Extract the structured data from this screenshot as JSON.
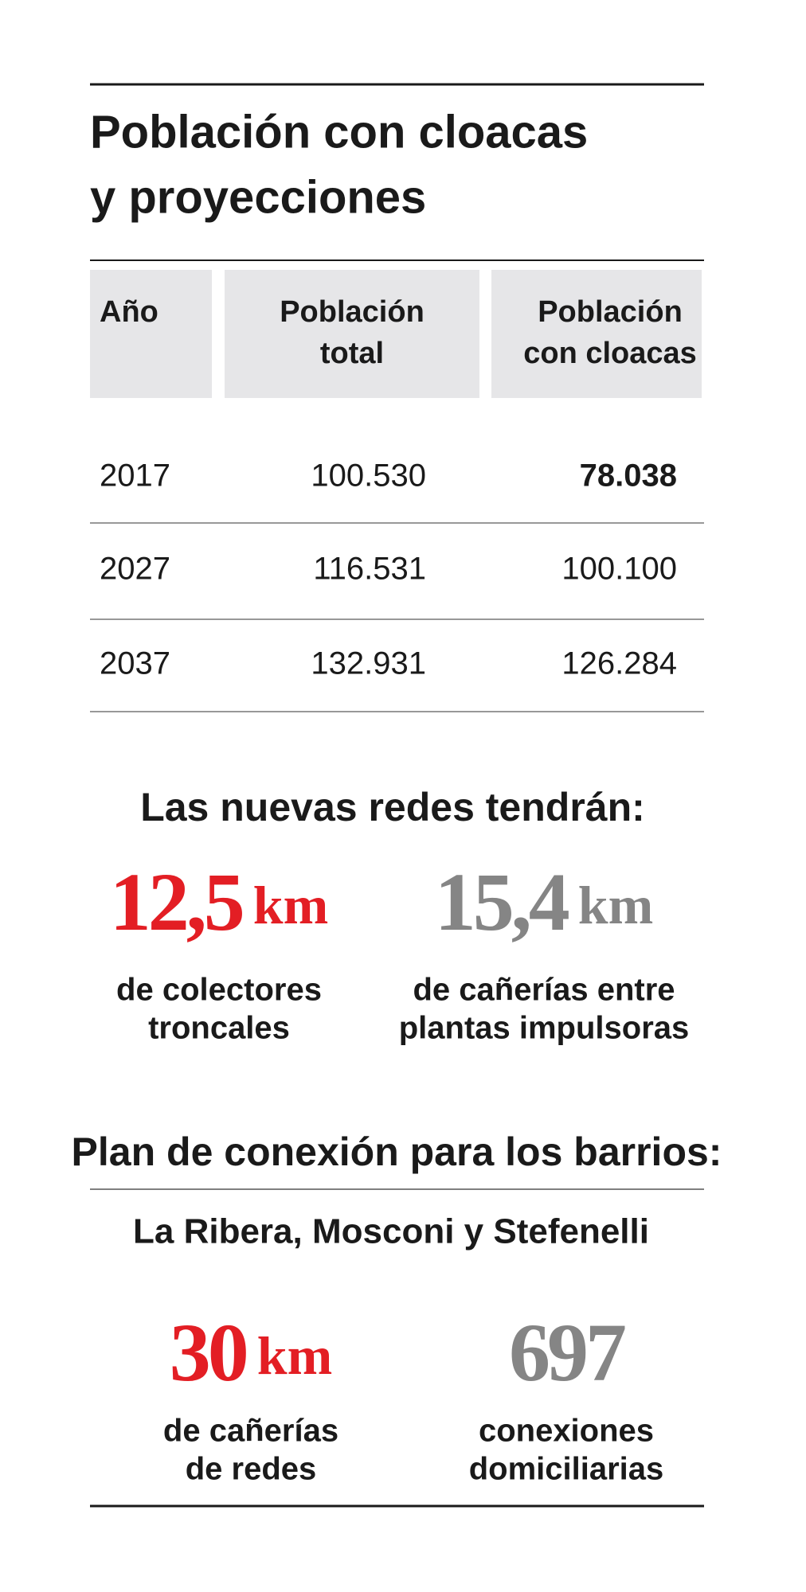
{
  "header": {
    "title": [
      "Población con cloacas",
      "y proyecciones"
    ]
  },
  "table": {
    "columns": [
      [
        "Año"
      ],
      [
        "Población",
        "total"
      ],
      [
        "Población",
        "con cloacas"
      ]
    ],
    "rows": [
      [
        "2017",
        "100.530",
        "78.038"
      ],
      [
        "2027",
        "116.531",
        "100.100"
      ],
      [
        "2037",
        "132.931",
        "126.284"
      ]
    ]
  },
  "networks": {
    "heading": "Las nuevas redes tendrán:",
    "items": [
      {
        "value": "12,5",
        "unit": "km",
        "label": [
          "de colectores",
          "troncales"
        ]
      },
      {
        "value": "15,4",
        "unit": "km",
        "label": [
          "de cañerías entre",
          "plantas impulsoras"
        ]
      }
    ]
  },
  "plan": {
    "heading": "Plan de conexión para los barrios:",
    "neighborhoods": "La Ribera, Mosconi y Stefenelli",
    "items": [
      {
        "value": "30",
        "unit": "km",
        "label": [
          "de cañerías",
          "de redes"
        ]
      },
      {
        "value": "697",
        "label": [
          "conexiones",
          "domiciliarias"
        ]
      }
    ]
  }
}
